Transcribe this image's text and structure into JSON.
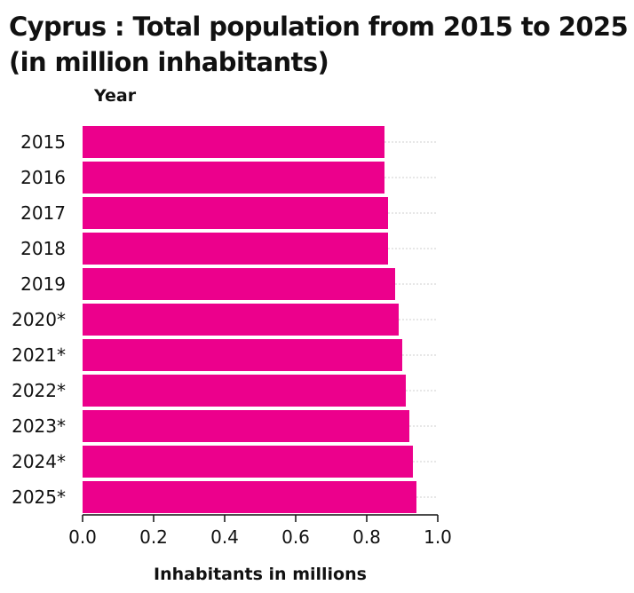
{
  "chart_data": {
    "type": "bar",
    "orientation": "horizontal",
    "title": "Cyprus : Total population from 2015 to 2025 (in million inhabitants)",
    "xlabel": "Inhabitants in millions",
    "ylabel": "Year",
    "categories": [
      "2015",
      "2016",
      "2017",
      "2018",
      "2019",
      "2020*",
      "2021*",
      "2022*",
      "2023*",
      "2024*",
      "2025*"
    ],
    "values": [
      0.85,
      0.85,
      0.86,
      0.86,
      0.88,
      0.89,
      0.9,
      0.91,
      0.92,
      0.93,
      0.94
    ],
    "xlim": [
      0,
      1.0
    ],
    "xticks": [
      "0.0",
      "0.2",
      "0.4",
      "0.6",
      "0.8",
      "1.0"
    ],
    "grid": "horizontal dotted lines",
    "legend": "none",
    "bar_color": "#ec008c"
  }
}
